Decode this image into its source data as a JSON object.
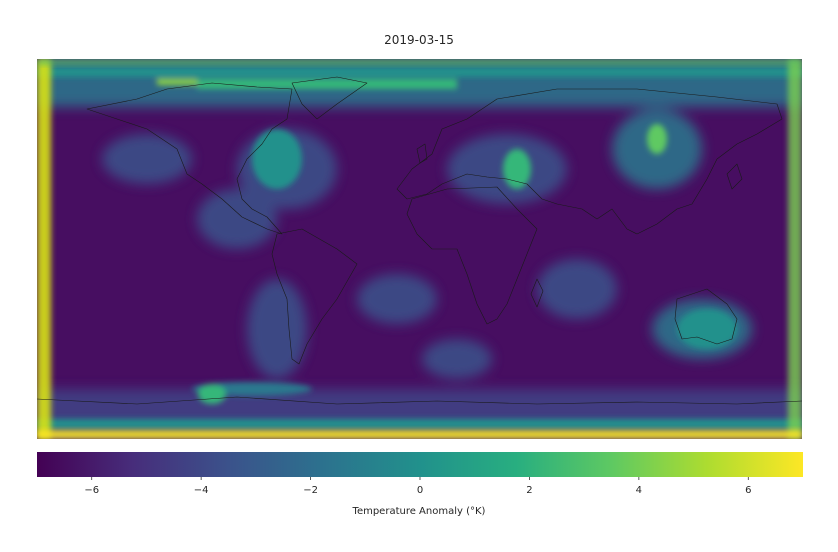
{
  "title": "2019-03-15",
  "colorbar": {
    "label": "Temperature Anomaly (°K)",
    "colormap": "viridis",
    "range": [
      -7,
      7
    ],
    "ticks": [
      -6,
      -4,
      -2,
      0,
      2,
      4,
      6
    ],
    "tick_labels": [
      "−6",
      "−4",
      "−2",
      "0",
      "2",
      "4",
      "6"
    ]
  },
  "map": {
    "projection": "plate-carree",
    "field": "temperature anomaly",
    "background_value": -6.2,
    "hotspots": [
      {
        "lon": 80,
        "lat": 47,
        "value": 2.2
      },
      {
        "lon": 118,
        "lat": 34,
        "value": 2.5
      },
      {
        "lon": 138,
        "lat": -25,
        "value": 0.8
      },
      {
        "lon": -90,
        "lat": 43,
        "value": -2.5
      },
      {
        "lon": -66,
        "lat": -25,
        "value": -1.5
      },
      {
        "lon": -100,
        "lat": -67,
        "value": 1.0
      },
      {
        "lon": 64,
        "lat": 58,
        "value": -1.5
      }
    ]
  }
}
